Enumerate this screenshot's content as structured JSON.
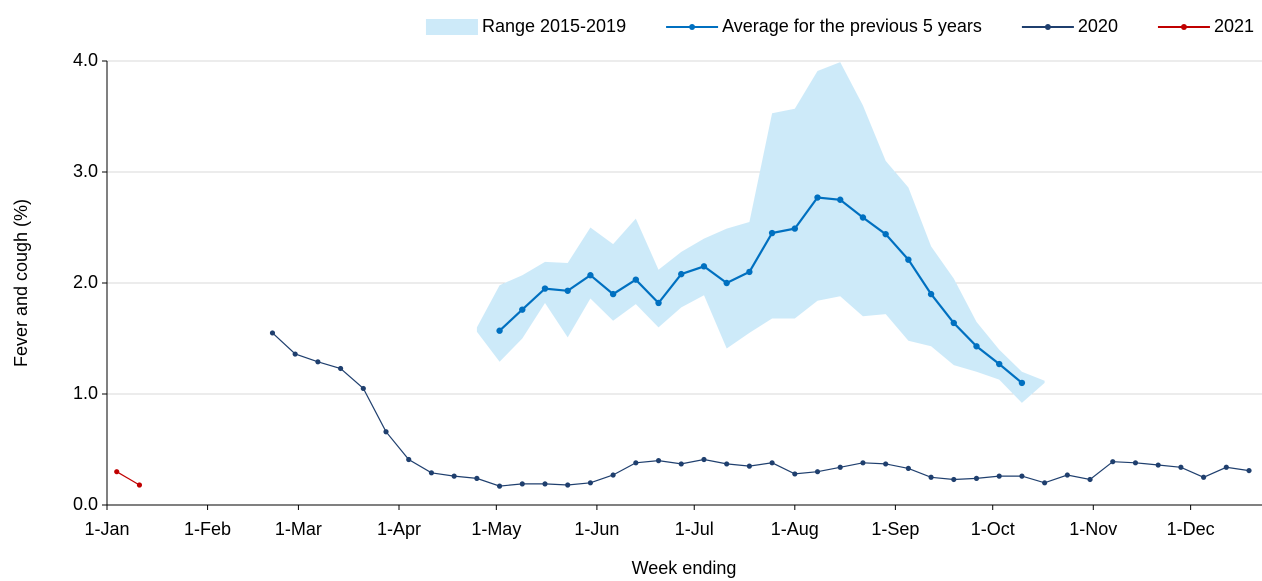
{
  "chart_data": {
    "type": "line",
    "y_label": "Fever and cough (%)",
    "x_label": "Week ending",
    "xlim": [
      0,
      356
    ],
    "xticks": [
      {
        "value": 0,
        "label": "1-Jan"
      },
      {
        "value": 31,
        "label": "1-Feb"
      },
      {
        "value": 59,
        "label": "1-Mar"
      },
      {
        "value": 90,
        "label": "1-Apr"
      },
      {
        "value": 120,
        "label": "1-May"
      },
      {
        "value": 151,
        "label": "1-Jun"
      },
      {
        "value": 181,
        "label": "1-Jul"
      },
      {
        "value": 212,
        "label": "1-Aug"
      },
      {
        "value": 243,
        "label": "1-Sep"
      },
      {
        "value": 273,
        "label": "1-Oct"
      },
      {
        "value": 304,
        "label": "1-Nov"
      },
      {
        "value": 334,
        "label": "1-Dec"
      }
    ],
    "ylim": [
      0,
      4
    ],
    "yticks": [
      {
        "value": 0,
        "label": "0.0"
      },
      {
        "value": 1,
        "label": "1.0"
      },
      {
        "value": 2,
        "label": "2.0"
      },
      {
        "value": 3,
        "label": "3.0"
      },
      {
        "value": 4,
        "label": "4.0"
      }
    ],
    "grid": true,
    "legend": "top-right",
    "series": [
      {
        "name": "Range 2015-2019",
        "color": "#cdeaf9",
        "type": "area",
        "x": [
          114,
          121,
          128,
          135,
          142,
          149,
          156,
          163,
          170,
          177,
          184,
          191,
          198,
          205,
          212,
          219,
          226,
          233,
          240,
          247,
          254,
          261,
          268,
          275,
          282,
          289
        ],
        "upper": [
          1.6,
          1.98,
          2.07,
          2.19,
          2.18,
          2.5,
          2.35,
          2.58,
          2.12,
          2.28,
          2.4,
          2.49,
          2.55,
          3.53,
          3.57,
          3.91,
          3.99,
          3.6,
          3.1,
          2.86,
          2.33,
          2.04,
          1.65,
          1.4,
          1.2,
          1.12
        ],
        "lower": [
          1.56,
          1.29,
          1.5,
          1.82,
          1.51,
          1.86,
          1.66,
          1.81,
          1.6,
          1.78,
          1.89,
          1.41,
          1.55,
          1.68,
          1.68,
          1.84,
          1.88,
          1.7,
          1.72,
          1.48,
          1.43,
          1.26,
          1.2,
          1.13,
          0.92,
          1.1
        ]
      },
      {
        "name": "Average for the previous 5 years",
        "color": "#0070c0",
        "type": "line",
        "x": [
          121,
          128,
          135,
          142,
          149,
          156,
          163,
          170,
          177,
          184,
          191,
          198,
          205,
          212,
          219,
          226,
          233,
          240,
          247,
          254,
          261,
          268,
          275,
          282
        ],
        "values": [
          1.57,
          1.76,
          1.95,
          1.93,
          2.07,
          1.9,
          2.03,
          1.82,
          2.08,
          2.15,
          2.0,
          2.1,
          2.45,
          2.49,
          2.77,
          2.75,
          2.59,
          2.44,
          2.21,
          1.9,
          1.64,
          1.43,
          1.27,
          1.1
        ]
      },
      {
        "name": "2020",
        "color": "#1f3f6e",
        "type": "line",
        "x": [
          51,
          58,
          65,
          72,
          79,
          86,
          93,
          100,
          107,
          114,
          121,
          128,
          135,
          142,
          149,
          156,
          163,
          170,
          177,
          184,
          191,
          198,
          205,
          212,
          219,
          226,
          233,
          240,
          247,
          254,
          261,
          268,
          275,
          282,
          289,
          296,
          303,
          310,
          317,
          324,
          331,
          338,
          345,
          352
        ],
        "values": [
          1.55,
          1.36,
          1.29,
          1.23,
          1.05,
          0.66,
          0.41,
          0.29,
          0.26,
          0.24,
          0.17,
          0.19,
          0.19,
          0.18,
          0.2,
          0.27,
          0.38,
          0.4,
          0.37,
          0.41,
          0.37,
          0.35,
          0.38,
          0.28,
          0.3,
          0.34,
          0.38,
          0.37,
          0.33,
          0.25,
          0.23,
          0.24,
          0.26,
          0.26,
          0.2,
          0.27,
          0.23,
          0.39,
          0.38,
          0.36,
          0.34,
          0.25,
          0.34,
          0.31
        ]
      },
      {
        "name": "2021",
        "color": "#c00000",
        "type": "line",
        "x": [
          3,
          10
        ],
        "values": [
          0.3,
          0.18
        ]
      }
    ]
  }
}
